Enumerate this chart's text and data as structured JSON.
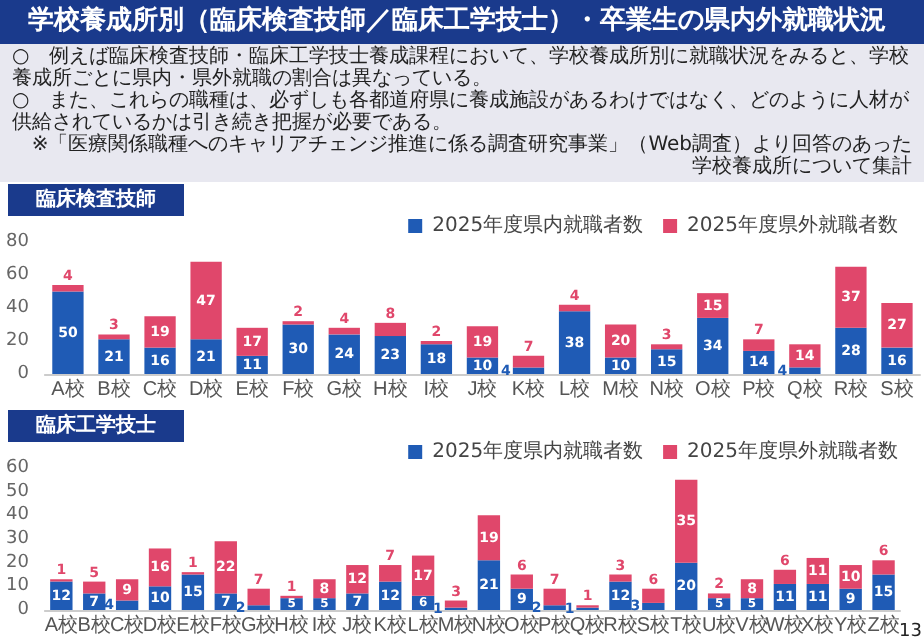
{
  "chart_data": [
    {
      "type": "bar",
      "title": "臨床検査技師",
      "stacked": true,
      "legend": "top right",
      "grid": false,
      "data_labels": true,
      "annotations": [
        "学校養成所別（臨床検査技師／臨床工学技士）・卒業生の県内外就職状況",
        "○　例えば臨床検査技師・臨床工学技士養成課程において、学校養成所別に就職状況をみると、学校養成所ごとに県内・県外就職の割合は異なっている。",
        "○　また、これらの職種は、必ずしも各都道府県に養成施設があるわけではなく、どのように人材が供給されているかは引き続き把握が必要である。",
        "※「医療関係職種へのキャリアチェンジ推進に係る調査研究事業」（Web調査）より回答のあった学校養成所について集計"
      ],
      "categories": [
        "A校",
        "B校",
        "C校",
        "D校",
        "E校",
        "F校",
        "G校",
        "H校",
        "I校",
        "J校",
        "K校",
        "L校",
        "M校",
        "N校",
        "O校",
        "P校",
        "Q校",
        "R校",
        "S校"
      ],
      "ylim": [
        0,
        80
      ],
      "yticks": [
        0,
        20,
        40,
        60,
        80
      ],
      "series": [
        {
          "name": "2025年度県内就職者数",
          "color": "#1f5bb5",
          "values": [
            50,
            21,
            16,
            21,
            11,
            30,
            24,
            23,
            18,
            10,
            4,
            38,
            10,
            15,
            34,
            14,
            4,
            28,
            16
          ]
        },
        {
          "name": "2025年度県外就職者数",
          "color": "#e0476b",
          "values": [
            4,
            3,
            19,
            47,
            17,
            2,
            4,
            8,
            2,
            19,
            7,
            4,
            20,
            3,
            15,
            7,
            14,
            37,
            27
          ]
        }
      ]
    },
    {
      "type": "bar",
      "title": "臨床工学技士",
      "stacked": true,
      "legend": "top right",
      "grid": false,
      "data_labels": true,
      "annotations": [
        "13"
      ],
      "categories": [
        "A校",
        "B校",
        "C校",
        "D校",
        "E校",
        "F校",
        "G校",
        "H校",
        "I校",
        "J校",
        "K校",
        "L校",
        "M校",
        "N校",
        "O校",
        "P校",
        "Q校",
        "R校",
        "S校",
        "T校",
        "U校",
        "V校",
        "W校",
        "X校",
        "Y校",
        "Z校"
      ],
      "ylim": [
        0,
        60
      ],
      "yticks": [
        0,
        10,
        20,
        30,
        40,
        50,
        60
      ],
      "series": [
        {
          "name": "2025年度県内就職者数",
          "color": "#1f5bb5",
          "values": [
            12,
            7,
            4,
            10,
            15,
            7,
            2,
            5,
            5,
            7,
            12,
            6,
            1,
            21,
            9,
            2,
            1,
            12,
            3,
            20,
            5,
            5,
            11,
            11,
            9,
            15
          ]
        },
        {
          "name": "2025年度県外就職者数",
          "color": "#e0476b",
          "values": [
            1,
            5,
            9,
            16,
            1,
            22,
            7,
            1,
            8,
            12,
            7,
            17,
            3,
            19,
            6,
            7,
            1,
            3,
            6,
            35,
            2,
            8,
            6,
            11,
            10,
            6
          ]
        }
      ]
    }
  ]
}
